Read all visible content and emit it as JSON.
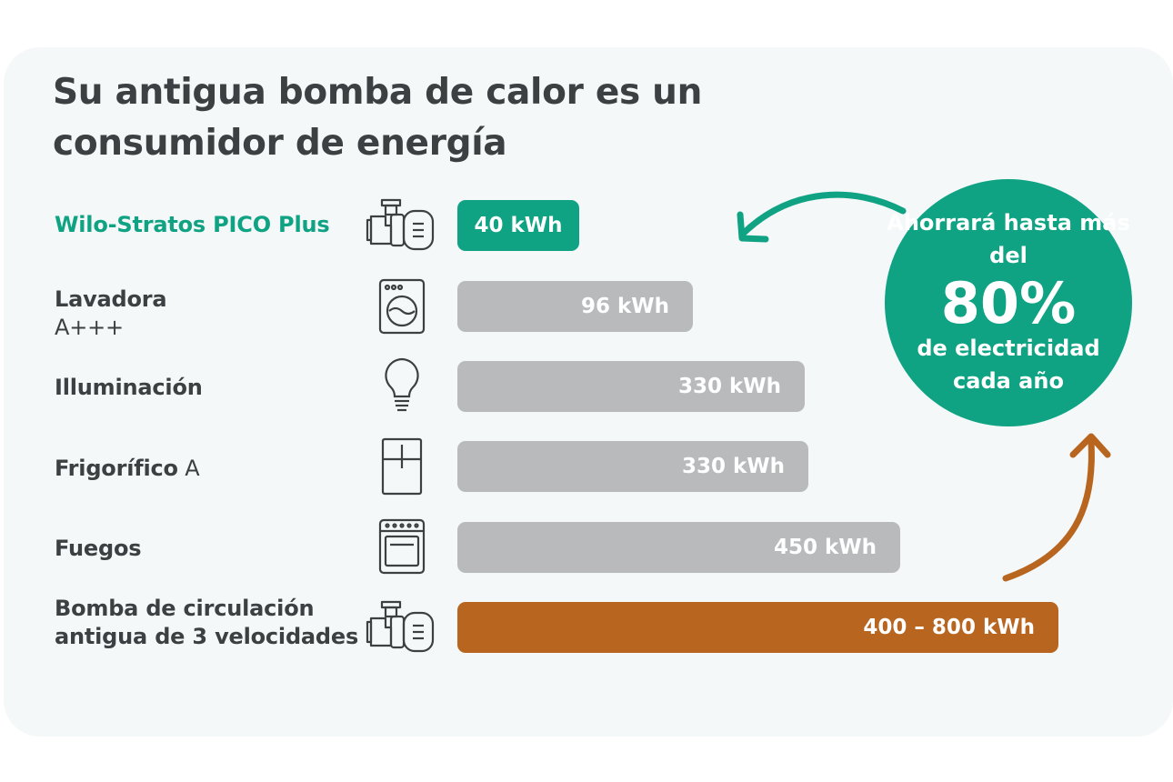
{
  "title": "Su antigua bomba de calor es un consumidor de energía",
  "badge": {
    "line1": "Ahorrará hasta más del",
    "value": "80%",
    "line2": "de electricidad cada año"
  },
  "colors": {
    "accent": "#0fa384",
    "bar_gray": "#b9babc",
    "bar_old": "#b7651f",
    "text": "#3d4043"
  },
  "chart_data": {
    "type": "bar",
    "orientation": "horizontal",
    "title": "Su antigua bomba de calor es un consumidor de energía",
    "xlim": [
      0,
      1000
    ],
    "grid": false,
    "categories": [
      "Wilo-Stratos PICO Plus",
      "Lavadora A+++",
      "Illuminación",
      "Frigorífico A",
      "Fuegos",
      "Bomba de circulación antigua de 3 velocidades"
    ],
    "rows": [
      {
        "label": "Wilo-Stratos PICO Plus",
        "sub": "",
        "icon": "pump-icon",
        "value": 40,
        "display": "40 kWh",
        "color": "#0fa384",
        "accent": true
      },
      {
        "label": "Lavadora",
        "sub": "A+++",
        "icon": "washing-machine-icon",
        "value": 96,
        "display": "96 kWh",
        "color": "#b9babc",
        "accent": false
      },
      {
        "label": "Illuminación",
        "sub": "",
        "icon": "light-bulb-icon",
        "value": 330,
        "display": "330 kWh",
        "color": "#b9babc",
        "accent": false
      },
      {
        "label": "Frigorífico",
        "suffix": "A",
        "icon": "fridge-icon",
        "value": 330,
        "display": "330 kWh",
        "color": "#b9babc",
        "accent": false
      },
      {
        "label": "Fuegos",
        "sub": "",
        "icon": "stove-icon",
        "value": 450,
        "display": "450 kWh",
        "color": "#b9babc",
        "accent": false
      },
      {
        "label": "Bomba de circulación antigua de 3 velocidades",
        "sub": "",
        "icon": "pump-icon",
        "value": 800,
        "value_min": 400,
        "value_max": 800,
        "display": "400 – 800 kWh",
        "color": "#b7651f",
        "accent": false
      }
    ]
  }
}
